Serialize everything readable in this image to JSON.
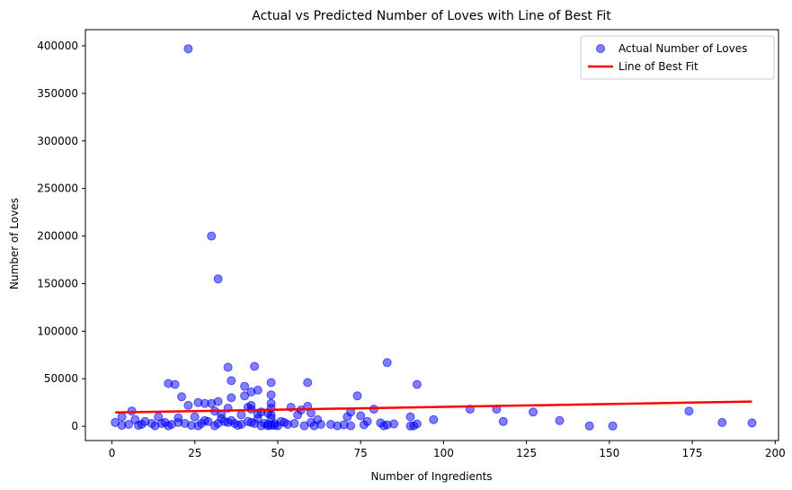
{
  "chart_data": {
    "type": "scatter",
    "title": "Actual vs Predicted Number of Loves with Line of Best Fit",
    "xlabel": "Number of Ingredients",
    "ylabel": "Number of Loves",
    "xlim": [
      -8,
      201
    ],
    "ylim": [
      -15000,
      417000
    ],
    "xticks": [
      0,
      25,
      50,
      75,
      100,
      125,
      150,
      175,
      200
    ],
    "xtick_labels": [
      "0",
      "25",
      "50",
      "75",
      "100",
      "125",
      "150",
      "175",
      "200"
    ],
    "yticks": [
      0,
      50000,
      100000,
      150000,
      200000,
      250000,
      300000,
      350000,
      400000
    ],
    "ytick_labels": [
      "0",
      "50000",
      "100000",
      "150000",
      "200000",
      "250000",
      "300000",
      "350000",
      "400000"
    ],
    "grid": false,
    "legend_position": "top-right",
    "series": [
      {
        "name": "Actual Number of Loves",
        "kind": "scatter",
        "color": "#0000ff",
        "points": [
          [
            23,
            397000
          ],
          [
            30,
            200000
          ],
          [
            32,
            155000
          ],
          [
            83,
            67000
          ],
          [
            43,
            63000
          ],
          [
            35,
            62000
          ],
          [
            36,
            48000
          ],
          [
            17,
            45000
          ],
          [
            19,
            44000
          ],
          [
            48,
            46000
          ],
          [
            59,
            46000
          ],
          [
            92,
            44000
          ],
          [
            40,
            42000
          ],
          [
            44,
            38000
          ],
          [
            42,
            36000
          ],
          [
            48,
            33000
          ],
          [
            74,
            32000
          ],
          [
            21,
            31000
          ],
          [
            36,
            30000
          ],
          [
            40,
            32000
          ],
          [
            26,
            25000
          ],
          [
            28,
            24000
          ],
          [
            30,
            24000
          ],
          [
            32,
            26000
          ],
          [
            48,
            24000
          ],
          [
            42,
            22000
          ],
          [
            23,
            22000
          ],
          [
            59,
            21000
          ],
          [
            35,
            19000
          ],
          [
            54,
            20000
          ],
          [
            48,
            19000
          ],
          [
            108,
            18000
          ],
          [
            116,
            18000
          ],
          [
            79,
            18000
          ],
          [
            6,
            16000
          ],
          [
            127,
            15000
          ],
          [
            174,
            16000
          ],
          [
            42,
            18000
          ],
          [
            57,
            17000
          ],
          [
            31,
            16000
          ],
          [
            45,
            15000
          ],
          [
            72,
            15000
          ],
          [
            60,
            14000
          ],
          [
            47,
            14000
          ],
          [
            56,
            12000
          ],
          [
            33,
            13000
          ],
          [
            39,
            12000
          ],
          [
            75,
            11000
          ],
          [
            71,
            10000
          ],
          [
            3,
            10000
          ],
          [
            14,
            10000
          ],
          [
            90,
            10000
          ],
          [
            25,
            10000
          ],
          [
            20,
            9000
          ],
          [
            48,
            9000
          ],
          [
            62,
            7000
          ],
          [
            44,
            8000
          ],
          [
            7,
            7000
          ],
          [
            36,
            6000
          ],
          [
            97,
            7000
          ],
          [
            77,
            5000
          ],
          [
            118,
            5000
          ],
          [
            135,
            6000
          ],
          [
            184,
            4000
          ],
          [
            193,
            3500
          ],
          [
            1,
            4000
          ],
          [
            10,
            5000
          ],
          [
            16,
            4000
          ],
          [
            29,
            5000
          ],
          [
            34,
            5000
          ],
          [
            41,
            5000
          ],
          [
            51,
            5000
          ],
          [
            60,
            4000
          ],
          [
            81,
            3500
          ],
          [
            92,
            2500
          ],
          [
            5,
            2000
          ],
          [
            12,
            3000
          ],
          [
            18,
            2000
          ],
          [
            22,
            3000
          ],
          [
            27,
            3000
          ],
          [
            37,
            3000
          ],
          [
            43,
            3000
          ],
          [
            46,
            3000
          ],
          [
            49,
            3000
          ],
          [
            53,
            2000
          ],
          [
            55,
            3000
          ],
          [
            63,
            2000
          ],
          [
            66,
            2000
          ],
          [
            70,
            1500
          ],
          [
            76,
            1500
          ],
          [
            83,
            1500
          ],
          [
            3,
            1000
          ],
          [
            8,
            1000
          ],
          [
            13,
            500
          ],
          [
            17,
            500
          ],
          [
            24,
            1000
          ],
          [
            26,
            500
          ],
          [
            31,
            500
          ],
          [
            38,
            1000
          ],
          [
            45,
            500
          ],
          [
            47,
            500
          ],
          [
            48,
            1000
          ],
          [
            50,
            500
          ],
          [
            58,
            500
          ],
          [
            61,
            500
          ],
          [
            68,
            500
          ],
          [
            72,
            500
          ],
          [
            82,
            500
          ],
          [
            90,
            300
          ],
          [
            144,
            300
          ],
          [
            151,
            300
          ],
          [
            20,
            4000
          ],
          [
            32,
            3000
          ],
          [
            39,
            2000
          ],
          [
            42,
            4000
          ],
          [
            47,
            2000
          ],
          [
            49,
            1000
          ],
          [
            52,
            4000
          ],
          [
            9,
            2000
          ],
          [
            15,
            3000
          ],
          [
            28,
            6000
          ],
          [
            33,
            8000
          ],
          [
            35,
            4000
          ],
          [
            41,
            20000
          ],
          [
            44,
            13000
          ],
          [
            48,
            12000
          ],
          [
            85,
            2500
          ],
          [
            91,
            500
          ]
        ]
      },
      {
        "name": "Line of Best Fit",
        "kind": "line",
        "color": "#ff0000",
        "points": [
          [
            1,
            14500
          ],
          [
            193,
            26000
          ]
        ]
      }
    ]
  }
}
